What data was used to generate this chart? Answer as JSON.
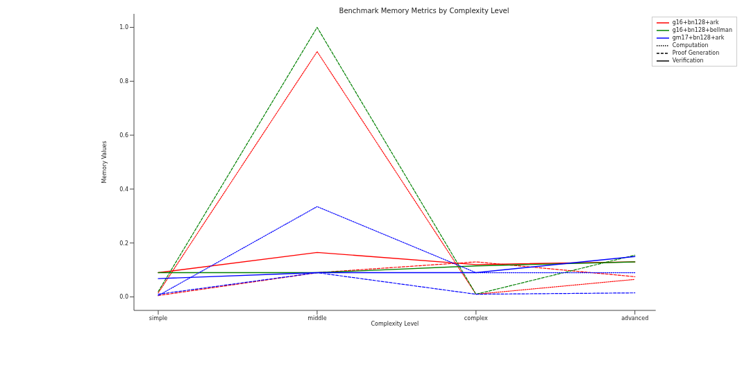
{
  "chart_data": {
    "type": "line",
    "title": "Benchmark Memory Metrics by Complexity Level",
    "xlabel": "Complexity Level",
    "ylabel": "Memory Values",
    "categories": [
      "simple",
      "middle",
      "complex",
      "advanced"
    ],
    "series": [
      {
        "color": "#ff0000",
        "line_style": "dotted",
        "values": [
          0.015,
          0.91,
          0.01,
          0.065
        ]
      },
      {
        "color": "#ff0000",
        "line_style": "dashed",
        "values": [
          0.005,
          0.09,
          0.13,
          0.075
        ]
      },
      {
        "color": "#ff0000",
        "line_style": "solid",
        "values": [
          0.09,
          0.165,
          0.12,
          0.13
        ]
      },
      {
        "color": "#008000",
        "line_style": "dashed",
        "values": [
          0.02,
          1.0,
          0.01,
          0.155
        ]
      },
      {
        "color": "#008000",
        "line_style": "solid",
        "values": [
          0.09,
          0.09,
          0.115,
          0.13
        ]
      },
      {
        "color": "#0000ff",
        "line_style": "dotted",
        "values": [
          0.005,
          0.335,
          0.09,
          0.09
        ]
      },
      {
        "color": "#0000ff",
        "line_style": "dashed",
        "values": [
          0.01,
          0.09,
          0.01,
          0.015
        ]
      },
      {
        "color": "#0000ff",
        "line_style": "solid",
        "values": [
          0.068,
          0.09,
          0.09,
          0.15
        ]
      },
      {
        "name": "g16+bn128+ark",
        "color": "#ff0000",
        "line_style": "solid",
        "values": [
          null,
          null,
          null,
          null
        ]
      },
      {
        "name": "g16+bn128+bellman",
        "color": "#008000",
        "line_style": "solid",
        "values": [
          null,
          null,
          null,
          null
        ]
      },
      {
        "name": "gm17+bn128+ark",
        "color": "#0000ff",
        "line_style": "solid",
        "values": [
          null,
          null,
          null,
          null
        ]
      },
      {
        "name": "Computation",
        "color": "#000000",
        "line_style": "dotted",
        "values": [
          null,
          null,
          null,
          null
        ]
      },
      {
        "name": "Proof Generation",
        "color": "#000000",
        "line_style": "dashed",
        "values": [
          null,
          null,
          null,
          null
        ]
      },
      {
        "name": "Verification",
        "color": "#000000",
        "line_style": "solid",
        "values": [
          null,
          null,
          null,
          null
        ]
      }
    ],
    "ylim": [
      -0.05,
      1.05
    ],
    "yticks": [
      {
        "value": 0,
        "label": "0.0"
      },
      0.2,
      0.4,
      0.6,
      0.8,
      {
        "value": 1,
        "label": "1.0"
      }
    ],
    "grid": false,
    "legend": "top right",
    "marker": "none"
  }
}
